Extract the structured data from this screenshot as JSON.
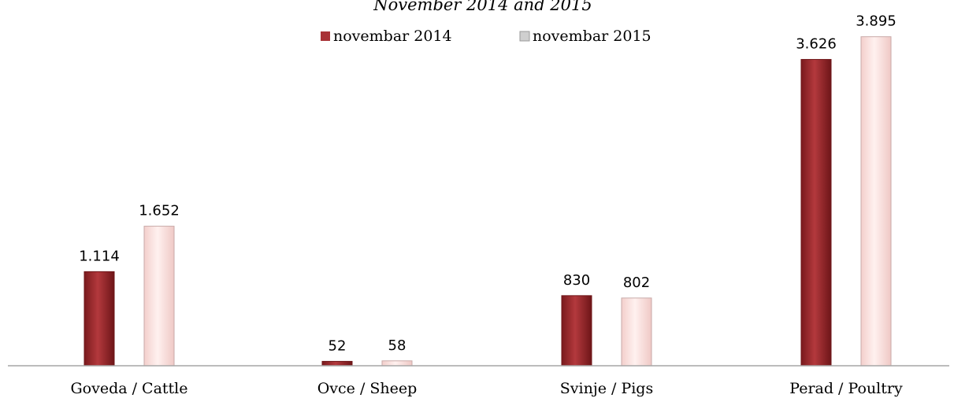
{
  "chart_data": {
    "type": "bar",
    "title": "November 2014 and 2015",
    "categories": [
      "Goveda / Cattle",
      "Ovce / Sheep",
      "Svinje / Pigs",
      "Perad / Poultry"
    ],
    "series": [
      {
        "name": "novembar 2014",
        "values": [
          1114,
          52,
          830,
          3626
        ],
        "labels": [
          "1.114",
          "52",
          "830",
          "3.626"
        ]
      },
      {
        "name": "novembar 2015",
        "values": [
          1652,
          58,
          802,
          3895
        ],
        "labels": [
          "1.652",
          "58",
          "802",
          "3.895"
        ]
      }
    ],
    "ylim": [
      0,
      4200
    ],
    "grid": false,
    "legend": "top-center",
    "colors": {
      "series_2014": "#a83236",
      "series_2014_dark": "#6e1518",
      "series_2015": "#fbe3e1",
      "series_2015_edge": "#c9aaa8",
      "axis": "#a6a6a6"
    }
  }
}
